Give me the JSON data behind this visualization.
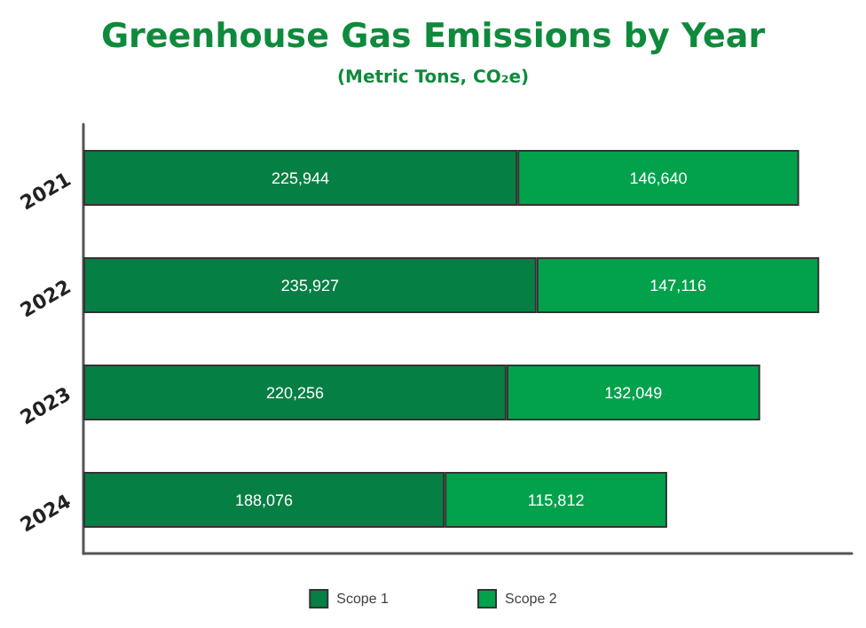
{
  "chart_data": {
    "type": "bar",
    "orientation": "horizontal",
    "stacked": true,
    "title": "Greenhouse Gas Emissions by Year",
    "subtitle": "(Metric Tons, CO₂e)",
    "categories": [
      "2021",
      "2022",
      "2023",
      "2024"
    ],
    "series": [
      {
        "name": "Scope 1",
        "color": "#067f44",
        "values": [
          225944,
          235927,
          220256,
          188076
        ],
        "value_labels": [
          "225,944",
          "235,927",
          "220,256",
          "188,076"
        ]
      },
      {
        "name": "Scope 2",
        "color": "#02a24c",
        "values": [
          146640,
          147116,
          132049,
          115812
        ],
        "value_labels": [
          "146,640",
          "147,116",
          "132,049",
          "115,812"
        ]
      }
    ],
    "legend": "bottom",
    "grid": false,
    "tick_labels": "y"
  }
}
